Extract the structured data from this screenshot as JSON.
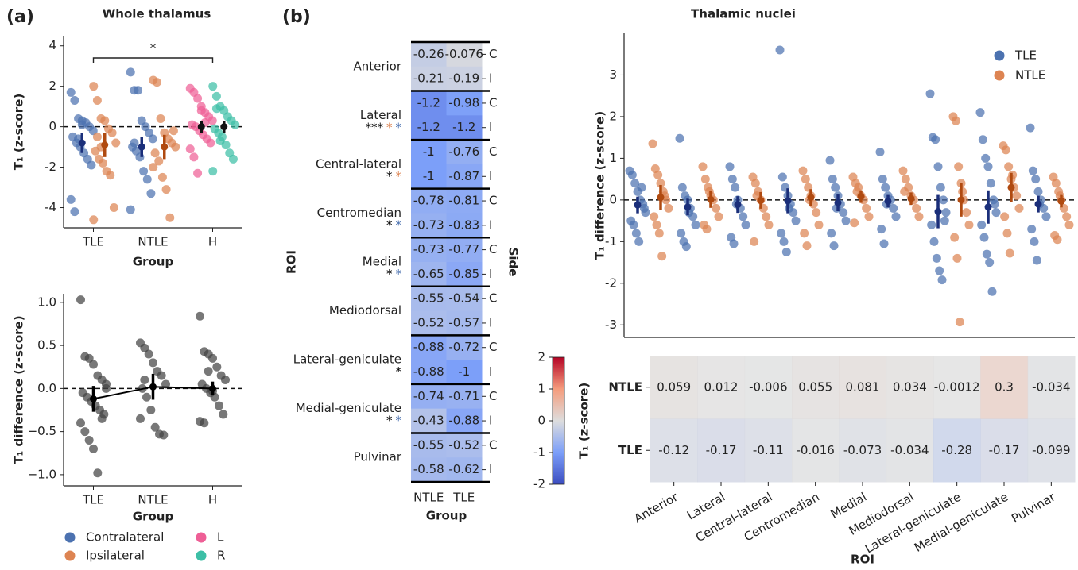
{
  "chart_data": [
    {
      "type": "strip",
      "panel": "(a)",
      "title": "Whole thalamus",
      "xlabel": "Group",
      "ylabel": "T₁ (z-score)",
      "categories": [
        "TLE",
        "NTLE",
        "H"
      ],
      "ylim": [
        -5,
        4.5
      ],
      "yticks": [
        -4,
        -2,
        0,
        2,
        4
      ],
      "reference_line": 0,
      "significance": {
        "text": "*",
        "between": [
          "TLE",
          "H"
        ]
      },
      "legend": "bottom",
      "series": [
        {
          "name": "Contralateral",
          "color": "#4c72b0",
          "mean_color": "#1b2f7a",
          "values": [
            [
              1.7,
              1.3,
              0.4,
              0.3,
              0.2,
              0,
              -0.2,
              -0.5,
              -0.8,
              -1.0,
              -1.3,
              -1.6,
              -1.9,
              -3.6,
              -4.2,
              -0.6,
              0.1
            ],
            [
              2.7,
              1.8,
              1.8,
              0.3,
              0,
              -0.3,
              -0.6,
              -1.0,
              -1.2,
              -1.5,
              -2.2,
              -2.6,
              -3.3,
              -4.1,
              -0.8
            ],
            null
          ],
          "means": [
            -0.8,
            -1.0,
            null
          ],
          "errors": [
            0.5,
            0.5,
            null
          ]
        },
        {
          "name": "Ipsilateral",
          "color": "#dd8452",
          "mean_color": "#b04a10",
          "values": [
            [
              2.0,
              1.3,
              0.4,
              0.3,
              -0.1,
              -0.3,
              -0.8,
              -1.2,
              -1.6,
              -1.8,
              -2.2,
              -2.4,
              -4.0,
              -4.6,
              -0.5,
              -1.0
            ],
            [
              2.3,
              2.2,
              0.4,
              -0.3,
              -0.6,
              -0.8,
              -1.0,
              -1.3,
              -1.7,
              -2.5,
              -3.1,
              -4.5,
              -0.2,
              -2.0
            ],
            null
          ],
          "means": [
            -0.9,
            -1.0,
            null
          ],
          "errors": [
            0.6,
            0.6,
            null
          ]
        },
        {
          "name": "L",
          "color": "#ee5f96",
          "mean_color": "#111111",
          "values": [
            null,
            null,
            [
              1.9,
              1.7,
              1.4,
              1.0,
              0.7,
              0.5,
              0.3,
              0.1,
              0,
              -0.2,
              -0.4,
              -0.6,
              -0.8,
              -1.1,
              -1.5,
              -2.3,
              0.8,
              0.2
            ]
          ],
          "means": [
            null,
            null,
            0.0
          ],
          "errors": [
            null,
            null,
            0.3
          ]
        },
        {
          "name": "R",
          "color": "#3dbfa6",
          "mean_color": "#111111",
          "values": [
            null,
            null,
            [
              2.0,
              1.5,
              1.0,
              0.8,
              0.5,
              0.3,
              0.1,
              -0.1,
              -0.3,
              -0.5,
              -0.9,
              -1.3,
              -1.6,
              -2.2,
              0.9,
              -0.7
            ]
          ],
          "means": [
            null,
            null,
            0.0
          ],
          "errors": [
            null,
            null,
            0.3
          ]
        }
      ]
    },
    {
      "type": "strip",
      "xlabel": "Group",
      "ylabel": "T₁ difference (z-score)",
      "categories": [
        "TLE",
        "NTLE",
        "H"
      ],
      "ylim": [
        -1.13,
        1.1
      ],
      "yticks": [
        {
          "value": -1,
          "label": "−1.0"
        },
        {
          "value": -0.5,
          "label": "−0.5"
        },
        {
          "value": 0,
          "label": "0.0"
        },
        {
          "value": 0.5,
          "label": "0.5"
        },
        {
          "value": 1,
          "label": "1.0"
        }
      ],
      "reference_line": 0,
      "connect_means": true,
      "series": [
        {
          "color": "#444444",
          "mean_color": "#000000",
          "values": [
            [
              1.03,
              0.37,
              0.35,
              0.28,
              0.15,
              0.1,
              0.0,
              -0.05,
              -0.1,
              -0.15,
              -0.2,
              -0.25,
              -0.3,
              -0.4,
              -0.5,
              -0.6,
              -0.7,
              -0.98,
              -0.35,
              0.05
            ],
            [
              0.53,
              0.47,
              0.4,
              0.3,
              0.2,
              0.15,
              0.05,
              0.0,
              -0.1,
              -0.25,
              -0.45,
              -0.53,
              -0.54,
              -0.35,
              0.1
            ],
            [
              0.84,
              0.43,
              0.4,
              0.35,
              0.25,
              0.15,
              0.1,
              0.05,
              0,
              -0.05,
              -0.1,
              -0.2,
              -0.3,
              -0.38,
              -0.4,
              0.2,
              -0.03
            ]
          ],
          "means": [
            -0.12,
            0.02,
            0.0
          ],
          "errors": [
            0.15,
            0.15,
            0.08
          ]
        }
      ]
    },
    {
      "type": "heatmap",
      "panel": "(b)",
      "xlabel": "Group",
      "ylabel": "ROI",
      "y2label": "Side",
      "columns": [
        "NTLE",
        "TLE"
      ],
      "sides": [
        "C",
        "I"
      ],
      "clim": [
        -2,
        2
      ],
      "rois": [
        {
          "name": "Anterior",
          "values": [
            [
              -0.26,
              -0.076
            ],
            [
              -0.21,
              -0.19
            ]
          ]
        },
        {
          "name": "Lateral",
          "annotations": [
            {
              "text": "***",
              "color": "#000000"
            },
            {
              "text": "*",
              "color": "#dd8452"
            },
            {
              "text": "*",
              "color": "#4c72b0"
            }
          ],
          "values": [
            [
              -1.2,
              -0.98
            ],
            [
              -1.2,
              -1.2
            ]
          ]
        },
        {
          "name": "Central-lateral",
          "annotations": [
            {
              "text": "*",
              "color": "#000000"
            },
            {
              "text": "*",
              "color": "#dd8452"
            }
          ],
          "values": [
            [
              -1,
              -0.76
            ],
            [
              -1,
              -0.87
            ]
          ]
        },
        {
          "name": "Centromedian",
          "annotations": [
            {
              "text": "*",
              "color": "#000000"
            },
            {
              "text": "*",
              "color": "#4c72b0"
            }
          ],
          "values": [
            [
              -0.78,
              -0.81
            ],
            [
              -0.73,
              -0.83
            ]
          ]
        },
        {
          "name": "Medial",
          "annotations": [
            {
              "text": "*",
              "color": "#000000"
            },
            {
              "text": "*",
              "color": "#4c72b0"
            }
          ],
          "values": [
            [
              -0.73,
              -0.77
            ],
            [
              -0.65,
              -0.85
            ]
          ]
        },
        {
          "name": "Mediodorsal",
          "values": [
            [
              -0.55,
              -0.54
            ],
            [
              -0.52,
              -0.57
            ]
          ]
        },
        {
          "name": "Lateral-geniculate",
          "annotations": [
            {
              "text": "*",
              "color": "#000000"
            }
          ],
          "values": [
            [
              -0.88,
              -0.72
            ],
            [
              -0.88,
              -1
            ]
          ]
        },
        {
          "name": "Medial-geniculate",
          "annotations": [
            {
              "text": "*",
              "color": "#000000"
            },
            {
              "text": "*",
              "color": "#4c72b0"
            }
          ],
          "values": [
            [
              -0.74,
              -0.71
            ],
            [
              -0.43,
              -0.88
            ]
          ]
        },
        {
          "name": "Pulvinar",
          "values": [
            [
              -0.55,
              -0.52
            ],
            [
              -0.58,
              -0.62
            ]
          ]
        }
      ]
    },
    {
      "type": "strip",
      "title": "Thalamic nuclei",
      "ylabel": "T₁ difference (z-score)",
      "ylim": [
        -3.3,
        4.0
      ],
      "yticks": [
        -3,
        -2,
        -1,
        0,
        1,
        2,
        3
      ],
      "reference_line": 0,
      "legend": "upper right",
      "series": [
        {
          "name": "TLE",
          "color": "#4c72b0",
          "mean_color": "#1b2f7a",
          "values": [
            [
              0.7,
              0.6,
              0.4,
              0.2,
              0,
              -0.1,
              -0.3,
              -0.5,
              -0.6,
              -0.8,
              -1.0,
              0.3,
              -0.2
            ],
            [
              1.48,
              0.3,
              0.1,
              0,
              -0.2,
              -0.4,
              -0.6,
              -0.8,
              -1.0,
              -1.12,
              -0.3
            ],
            [
              0.8,
              0.5,
              0.3,
              0,
              -0.2,
              -0.4,
              -0.6,
              -0.9,
              -1.05,
              -0.1
            ],
            [
              3.6,
              0.55,
              0.3,
              0.1,
              -0.1,
              -0.3,
              -0.5,
              -0.8,
              -1.0,
              -1.25,
              -0.2
            ],
            [
              0.95,
              0.5,
              0.3,
              0.1,
              -0.1,
              -0.3,
              -0.5,
              -0.8,
              -1.1,
              -0.2
            ],
            [
              1.15,
              0.5,
              0.3,
              0.1,
              0,
              -0.2,
              -0.4,
              -0.7,
              -1.05,
              -0.1
            ],
            [
              2.55,
              1.5,
              1.45,
              0.8,
              0.3,
              0,
              -0.3,
              -0.6,
              -1.0,
              -1.4,
              -1.7,
              -1.92,
              -0.5
            ],
            [
              2.1,
              1.45,
              1.0,
              0.8,
              0.4,
              0,
              -0.3,
              -0.6,
              -0.9,
              -1.3,
              -1.5,
              -2.2,
              -0.1
            ],
            [
              1.73,
              0.7,
              0.5,
              0.2,
              0,
              -0.2,
              -0.4,
              -0.7,
              -1.0,
              -1.45,
              -0.1
            ]
          ],
          "means": [
            -0.12,
            -0.17,
            -0.11,
            -0.02,
            -0.07,
            -0.03,
            -0.28,
            -0.17,
            -0.1
          ],
          "errors": [
            0.2,
            0.2,
            0.2,
            0.3,
            0.2,
            0.15,
            0.4,
            0.4,
            0.2
          ]
        },
        {
          "name": "NTLE",
          "color": "#dd8452",
          "mean_color": "#b04a10",
          "values": [
            [
              1.35,
              0.75,
              0.6,
              0.4,
              0.2,
              0,
              -0.2,
              -0.4,
              -0.6,
              -0.8,
              -1.35,
              0.1
            ],
            [
              0.8,
              0.5,
              0.3,
              0.1,
              0,
              -0.2,
              -0.4,
              -0.6,
              -0.7,
              0.2
            ],
            [
              0.55,
              0.4,
              0.2,
              0,
              -0.2,
              -0.4,
              -0.6,
              -1.0,
              0.1
            ],
            [
              0.7,
              0.5,
              0.3,
              0.1,
              -0.1,
              -0.3,
              -0.6,
              -0.8,
              -1.1,
              0
            ],
            [
              0.55,
              0.4,
              0.3,
              0.1,
              0,
              -0.2,
              -0.4,
              -0.55,
              0.2
            ],
            [
              0.7,
              0.5,
              0.3,
              0.1,
              0,
              -0.2,
              -0.4,
              0.2
            ],
            [
              2.0,
              1.9,
              0.8,
              0.4,
              0,
              -0.3,
              -0.6,
              -0.9,
              -1.4,
              -2.93,
              0.2
            ],
            [
              1.3,
              1.2,
              0.8,
              0.5,
              0.3,
              0.1,
              -0.2,
              -0.4,
              -0.8,
              -1.28,
              0.6
            ],
            [
              0.55,
              0.4,
              0.2,
              0,
              -0.2,
              -0.4,
              -0.6,
              -0.85,
              -0.95,
              0.1
            ]
          ],
          "means": [
            0.06,
            0.01,
            -0.01,
            0.06,
            0.08,
            0.03,
            0,
            0.3,
            -0.03
          ],
          "errors": [
            0.3,
            0.2,
            0.2,
            0.2,
            0.15,
            0.15,
            0.4,
            0.35,
            0.15
          ]
        }
      ]
    },
    {
      "type": "heatmap",
      "xlabel": "ROI",
      "rows": [
        "NTLE",
        "TLE"
      ],
      "columns": [
        "Anterior",
        "Lateral",
        "Central-lateral",
        "Centromedian",
        "Medial",
        "Mediodorsal",
        "Lateral-geniculate",
        "Medial-geniculate",
        "Pulvinar"
      ],
      "values": [
        [
          0.059,
          0.012,
          -0.006,
          0.055,
          0.081,
          0.034,
          -0.0012,
          0.3,
          -0.034
        ],
        [
          -0.12,
          -0.17,
          -0.11,
          -0.016,
          -0.073,
          -0.034,
          -0.28,
          -0.17,
          -0.099
        ]
      ],
      "clim": [
        -2,
        2
      ],
      "colorbar": {
        "label": "T₁ (z-score)",
        "lim": [
          -2,
          2
        ],
        "ticks": [
          -2,
          -1,
          0,
          1,
          2
        ]
      }
    }
  ]
}
